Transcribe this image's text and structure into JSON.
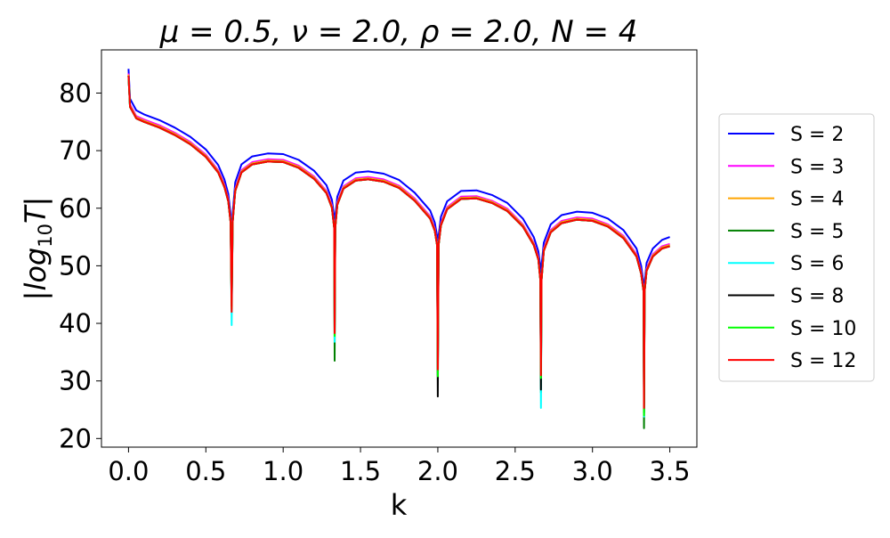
{
  "chart_data": {
    "type": "line",
    "title": "μ = 0.5, ν = 2.0, ρ = 2.0, N = 4",
    "xlabel": "k",
    "ylabel": "|log₁₀T|",
    "ylabel_main": "|log",
    "ylabel_sub": "10",
    "ylabel_tail": "T|",
    "xlim": [
      -0.175,
      3.675
    ],
    "ylim": [
      18.5,
      87.5
    ],
    "xticks": [
      0.0,
      0.5,
      1.0,
      1.5,
      2.0,
      2.5,
      3.0,
      3.5
    ],
    "xtick_labels": [
      "0.0",
      "0.5",
      "1.0",
      "1.5",
      "2.0",
      "2.5",
      "3.0",
      "3.5"
    ],
    "yticks": [
      20,
      30,
      40,
      50,
      60,
      70,
      80
    ],
    "ytick_labels": [
      "20",
      "30",
      "40",
      "50",
      "60",
      "70",
      "80"
    ],
    "grid": false,
    "legend_position": "outside-right",
    "x": [
      0.0,
      0.01,
      0.05,
      0.1,
      0.2,
      0.3,
      0.4,
      0.5,
      0.58,
      0.62,
      0.645,
      0.66,
      0.667,
      0.673,
      0.69,
      0.73,
      0.8,
      0.9,
      1.0,
      1.1,
      1.2,
      1.28,
      1.315,
      1.33,
      1.333,
      1.337,
      1.35,
      1.39,
      1.47,
      1.55,
      1.65,
      1.75,
      1.85,
      1.95,
      1.98,
      1.995,
      2.0,
      2.005,
      2.02,
      2.06,
      2.15,
      2.25,
      2.35,
      2.45,
      2.55,
      2.62,
      2.65,
      2.663,
      2.667,
      2.671,
      2.685,
      2.73,
      2.8,
      2.9,
      3.0,
      3.1,
      3.2,
      3.285,
      3.315,
      3.33,
      3.333,
      3.337,
      3.35,
      3.39,
      3.45,
      3.5
    ],
    "series": [
      {
        "name": "S = 2",
        "color": "#0000ff",
        "values": [
          84.2,
          79.0,
          77.0,
          76.3,
          75.3,
          74.0,
          72.4,
          70.2,
          67.5,
          65.0,
          62.5,
          59.0,
          52.0,
          59.0,
          64.5,
          67.6,
          69.0,
          69.5,
          69.4,
          68.4,
          66.5,
          64.0,
          61.5,
          58.5,
          50.0,
          58.5,
          62.0,
          64.8,
          66.2,
          66.4,
          66.0,
          64.9,
          62.7,
          59.6,
          57.5,
          55.2,
          49.0,
          55.2,
          58.5,
          61.2,
          63.0,
          63.1,
          62.3,
          60.9,
          58.2,
          55.0,
          52.5,
          50.0,
          43.0,
          50.0,
          54.0,
          57.2,
          58.8,
          59.4,
          59.2,
          58.2,
          56.2,
          53.0,
          50.0,
          47.0,
          40.0,
          47.0,
          50.5,
          53.0,
          54.5,
          55.0
        ]
      },
      {
        "name": "S = 3",
        "color": "#ff00ff",
        "values": [
          83.4,
          78.0,
          76.0,
          75.4,
          74.4,
          73.1,
          71.5,
          69.3,
          66.6,
          64.1,
          61.6,
          58.0,
          45.0,
          58.0,
          63.4,
          66.6,
          68.0,
          68.5,
          68.4,
          67.4,
          65.5,
          63.0,
          60.5,
          57.0,
          40.0,
          57.0,
          61.0,
          63.8,
          65.2,
          65.4,
          65.0,
          63.9,
          61.7,
          58.6,
          56.5,
          54.0,
          33.0,
          54.0,
          57.4,
          60.2,
          62.0,
          62.1,
          61.3,
          59.9,
          57.2,
          54.0,
          51.5,
          48.0,
          30.0,
          48.0,
          53.0,
          56.2,
          57.8,
          58.4,
          58.2,
          57.2,
          55.2,
          52.0,
          49.0,
          46.0,
          26.0,
          46.0,
          49.5,
          52.0,
          53.4,
          53.8
        ]
      },
      {
        "name": "S = 4",
        "color": "#ffa500",
        "values": [
          83.2,
          77.8,
          75.8,
          75.2,
          74.2,
          72.9,
          71.3,
          69.1,
          66.4,
          63.9,
          61.4,
          57.8,
          44.0,
          57.8,
          63.2,
          66.4,
          67.8,
          68.3,
          68.2,
          67.2,
          65.3,
          62.8,
          60.3,
          56.8,
          39.0,
          56.8,
          60.8,
          63.6,
          65.0,
          65.2,
          64.8,
          63.7,
          61.5,
          58.4,
          56.3,
          53.8,
          32.0,
          53.8,
          57.2,
          60.0,
          61.8,
          61.9,
          61.1,
          59.7,
          57.0,
          53.8,
          51.3,
          47.8,
          29.0,
          47.8,
          52.8,
          56.0,
          57.6,
          58.2,
          58.0,
          57.0,
          55.0,
          51.8,
          48.8,
          45.8,
          25.0,
          45.8,
          49.3,
          51.8,
          53.2,
          53.6
        ]
      },
      {
        "name": "S = 5",
        "color": "#008000",
        "values": [
          83.0,
          77.6,
          75.6,
          75.0,
          74.0,
          72.7,
          71.1,
          68.9,
          66.2,
          63.7,
          61.2,
          57.6,
          42.0,
          57.6,
          63.0,
          66.2,
          67.6,
          68.1,
          68.0,
          67.0,
          65.1,
          62.6,
          60.1,
          56.6,
          33.5,
          56.6,
          60.6,
          63.4,
          64.8,
          65.0,
          64.6,
          63.5,
          61.3,
          58.2,
          56.1,
          53.6,
          31.0,
          53.6,
          57.0,
          59.8,
          61.6,
          61.7,
          60.9,
          59.5,
          56.8,
          53.6,
          51.1,
          47.6,
          28.0,
          47.6,
          52.6,
          55.8,
          57.4,
          58.0,
          57.8,
          56.8,
          54.8,
          51.6,
          48.6,
          45.6,
          21.8,
          45.6,
          49.1,
          51.6,
          53.0,
          53.4
        ]
      },
      {
        "name": "S = 6",
        "color": "#00ffff",
        "values": [
          83.0,
          77.6,
          75.6,
          75.0,
          74.0,
          72.7,
          71.1,
          68.9,
          66.2,
          63.7,
          61.2,
          57.6,
          39.7,
          57.6,
          63.0,
          66.2,
          67.6,
          68.1,
          68.0,
          67.0,
          65.1,
          62.6,
          60.1,
          56.6,
          36.8,
          56.6,
          60.6,
          63.4,
          64.8,
          65.0,
          64.6,
          63.5,
          61.3,
          58.2,
          56.1,
          53.6,
          31.5,
          53.6,
          57.0,
          59.8,
          61.6,
          61.7,
          60.9,
          59.5,
          56.8,
          53.6,
          51.1,
          47.6,
          25.3,
          47.6,
          52.6,
          55.8,
          57.4,
          58.0,
          57.8,
          56.8,
          54.8,
          51.6,
          48.6,
          45.6,
          23.8,
          45.6,
          49.1,
          51.6,
          53.0,
          53.4
        ]
      },
      {
        "name": "S = 8",
        "color": "#000000",
        "values": [
          83.0,
          77.6,
          75.6,
          75.0,
          74.0,
          72.7,
          71.1,
          68.9,
          66.2,
          63.7,
          61.2,
          57.6,
          43.0,
          57.6,
          63.0,
          66.2,
          67.6,
          68.1,
          68.0,
          67.0,
          65.1,
          62.6,
          60.1,
          56.6,
          38.0,
          56.6,
          60.6,
          63.4,
          64.8,
          65.0,
          64.6,
          63.5,
          61.3,
          58.2,
          56.1,
          53.6,
          27.3,
          53.6,
          57.0,
          59.8,
          61.6,
          61.7,
          60.9,
          59.5,
          56.8,
          53.6,
          51.1,
          47.6,
          28.5,
          47.6,
          52.6,
          55.8,
          57.4,
          58.0,
          57.8,
          56.8,
          54.8,
          51.6,
          48.6,
          45.6,
          24.5,
          45.6,
          49.1,
          51.6,
          53.0,
          53.4
        ]
      },
      {
        "name": "S = 10",
        "color": "#00ff00",
        "values": [
          83.0,
          77.6,
          75.6,
          75.0,
          74.0,
          72.7,
          71.1,
          68.9,
          66.2,
          63.7,
          61.2,
          57.6,
          42.5,
          57.6,
          63.0,
          66.2,
          67.6,
          68.1,
          68.0,
          67.0,
          65.1,
          62.6,
          60.1,
          56.6,
          37.8,
          56.6,
          60.6,
          63.4,
          64.8,
          65.0,
          64.6,
          63.5,
          61.3,
          58.2,
          56.1,
          53.6,
          30.8,
          53.6,
          57.0,
          59.8,
          61.6,
          61.7,
          60.9,
          59.5,
          56.8,
          53.6,
          51.1,
          47.6,
          30.5,
          47.6,
          52.6,
          55.8,
          57.4,
          58.0,
          57.8,
          56.8,
          54.8,
          51.6,
          48.6,
          45.6,
          24.0,
          45.6,
          49.1,
          51.6,
          53.0,
          53.4
        ]
      },
      {
        "name": "S = 12",
        "color": "#ff0000",
        "values": [
          83.0,
          77.6,
          75.6,
          75.0,
          74.0,
          72.7,
          71.1,
          68.9,
          66.2,
          63.7,
          61.2,
          57.6,
          42.0,
          57.6,
          63.0,
          66.2,
          67.6,
          68.1,
          68.0,
          67.0,
          65.1,
          62.6,
          60.1,
          56.6,
          38.3,
          56.6,
          60.6,
          63.4,
          64.8,
          65.0,
          64.6,
          63.5,
          61.3,
          58.2,
          56.1,
          53.6,
          32.0,
          53.6,
          57.0,
          59.8,
          61.6,
          61.7,
          60.9,
          59.5,
          56.8,
          53.6,
          51.1,
          47.6,
          31.0,
          47.6,
          52.6,
          55.8,
          57.4,
          58.0,
          57.8,
          56.8,
          54.8,
          51.6,
          48.6,
          45.6,
          25.3,
          45.6,
          49.1,
          51.6,
          53.0,
          53.4
        ]
      }
    ]
  }
}
